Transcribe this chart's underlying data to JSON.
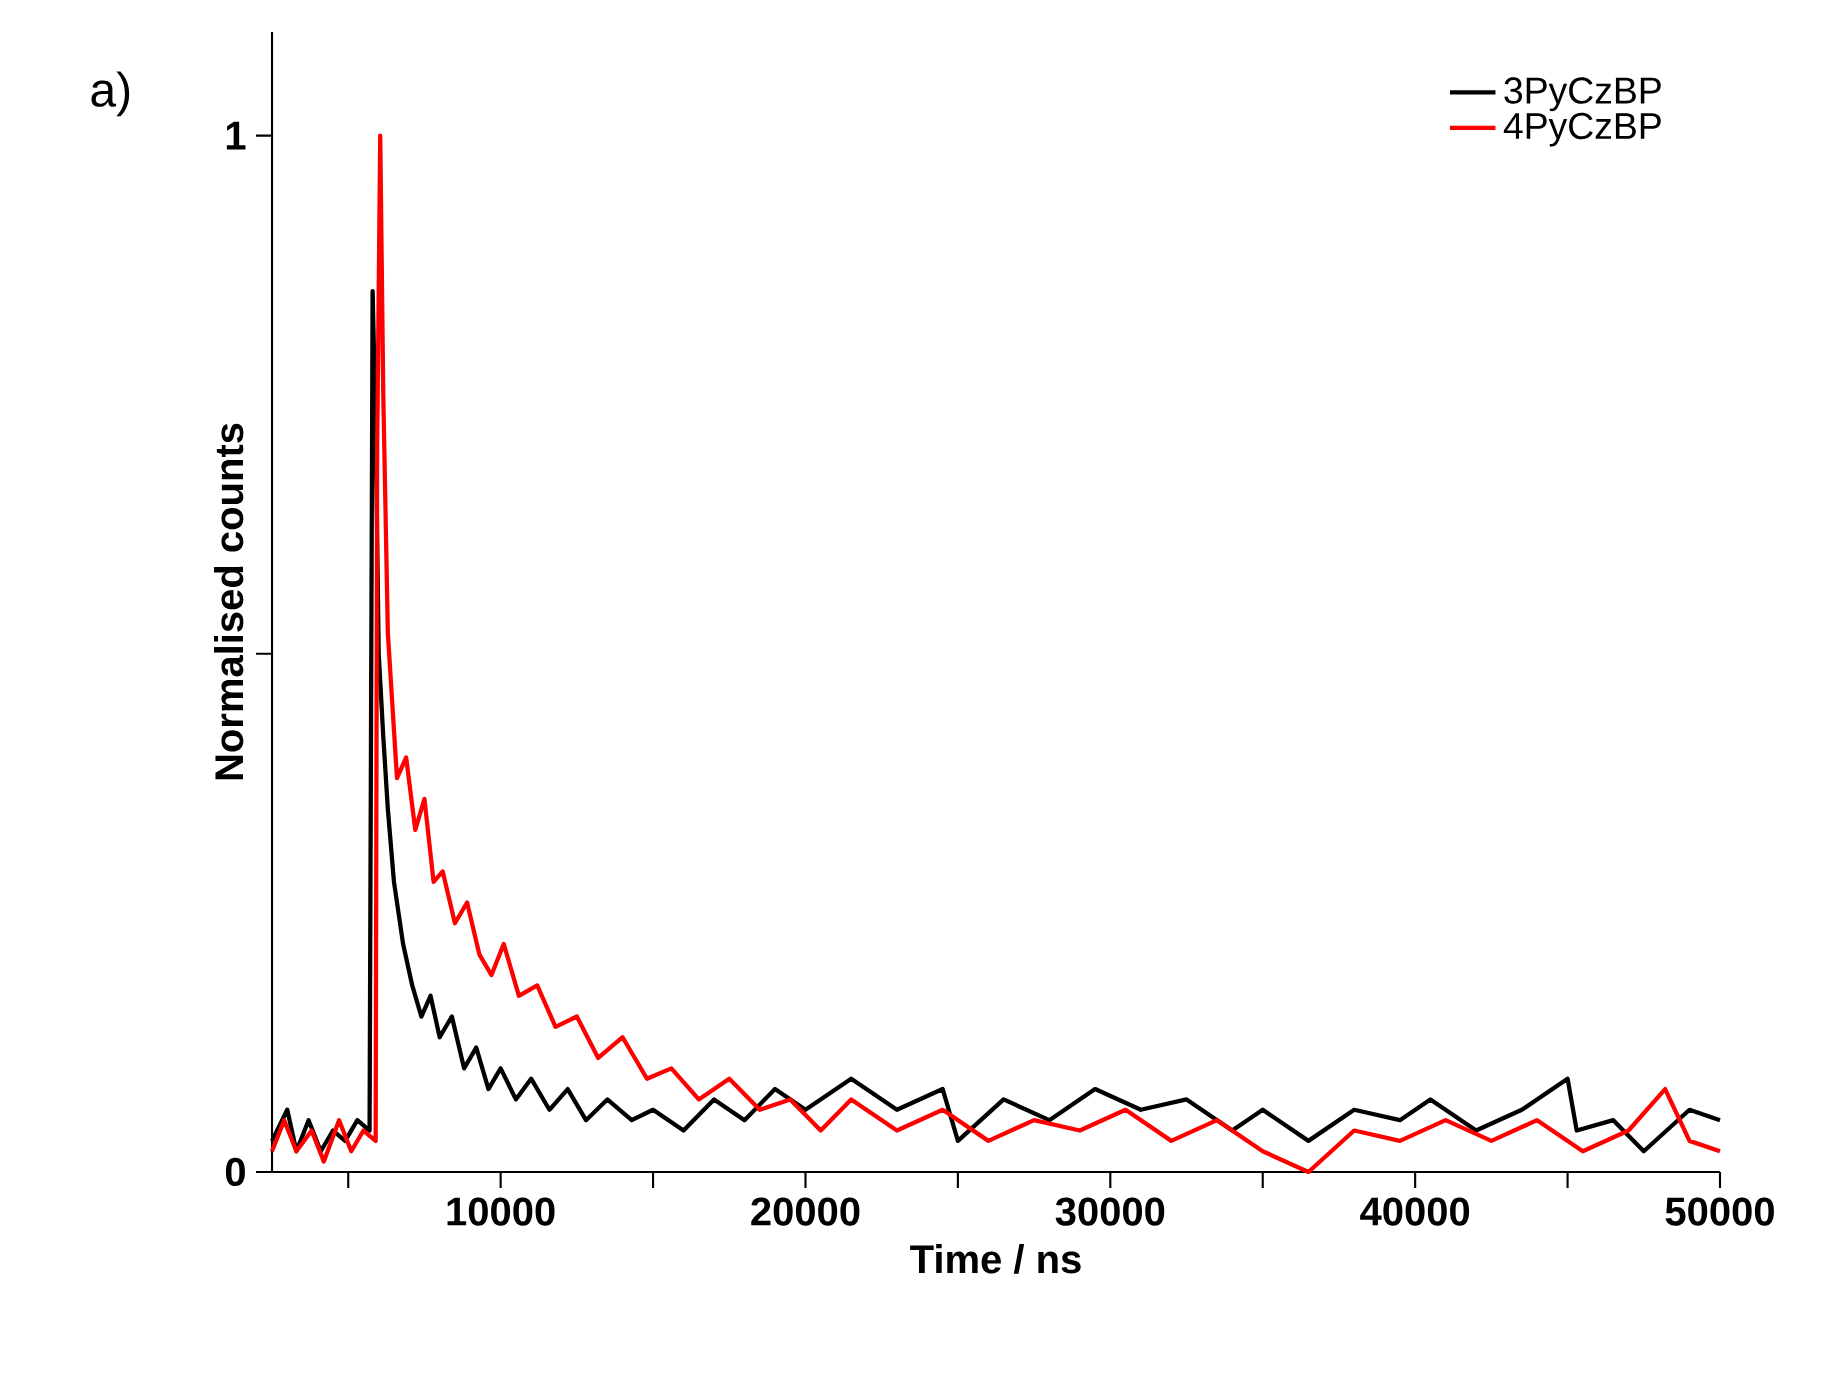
{
  "chart_data": {
    "type": "line",
    "xlabel": "Time / ns",
    "ylabel": "Normalised counts",
    "annotations": [
      "a)"
    ],
    "xlim": [
      2500,
      50000
    ],
    "ylim": [
      0,
      1.1
    ],
    "xticks": [
      {
        "value": 5000,
        "label": null
      },
      10000,
      {
        "value": 15000,
        "label": null
      },
      20000,
      {
        "value": 25000,
        "label": null
      },
      30000,
      {
        "value": 35000,
        "label": null
      },
      40000,
      {
        "value": 45000,
        "label": null
      },
      50000
    ],
    "yticks": [
      0,
      {
        "value": 0.5,
        "label": null
      },
      1
    ],
    "legend": "top right",
    "grid": false,
    "marker": "none",
    "line_style": "solid",
    "series": [
      {
        "name": "3PyCzBP",
        "color": "#000000",
        "x": [
          2500,
          3000,
          3300,
          3700,
          4100,
          4500,
          4900,
          5300,
          5700,
          5800,
          5900,
          6000,
          6150,
          6300,
          6500,
          6800,
          7100,
          7400,
          7700,
          8000,
          8400,
          8800,
          9200,
          9600,
          10000,
          10500,
          11000,
          11600,
          12200,
          12800,
          13500,
          14300,
          15000,
          16000,
          17000,
          18000,
          19000,
          20000,
          21500,
          23000,
          24500,
          25000,
          26500,
          28000,
          29500,
          31000,
          32500,
          34000,
          35000,
          36500,
          38000,
          39500,
          40500,
          42000,
          43500,
          45000,
          45300,
          46500,
          47500,
          49000,
          50000
        ],
        "values": [
          0.03,
          0.06,
          0.02,
          0.05,
          0.02,
          0.04,
          0.03,
          0.05,
          0.04,
          0.85,
          0.72,
          0.5,
          0.42,
          0.35,
          0.28,
          0.22,
          0.18,
          0.15,
          0.17,
          0.13,
          0.15,
          0.1,
          0.12,
          0.08,
          0.1,
          0.07,
          0.09,
          0.06,
          0.08,
          0.05,
          0.07,
          0.05,
          0.06,
          0.04,
          0.07,
          0.05,
          0.08,
          0.06,
          0.09,
          0.06,
          0.08,
          0.03,
          0.07,
          0.05,
          0.08,
          0.06,
          0.07,
          0.04,
          0.06,
          0.03,
          0.06,
          0.05,
          0.07,
          0.04,
          0.06,
          0.09,
          0.04,
          0.05,
          0.02,
          0.06,
          0.05
        ]
      },
      {
        "name": "4PyCzBP",
        "color": "#ff0000",
        "x": [
          2500,
          2900,
          3300,
          3800,
          4200,
          4700,
          5100,
          5500,
          5900,
          5950,
          6050,
          6150,
          6300,
          6450,
          6600,
          6900,
          7200,
          7500,
          7800,
          8100,
          8500,
          8900,
          9300,
          9700,
          10100,
          10600,
          11200,
          11800,
          12500,
          13200,
          14000,
          14800,
          15600,
          16500,
          17500,
          18500,
          19500,
          20500,
          21500,
          23000,
          24500,
          26000,
          27500,
          29000,
          30500,
          32000,
          33500,
          35000,
          36500,
          38000,
          39500,
          41000,
          42500,
          44000,
          45500,
          47000,
          48200,
          49000,
          50000
        ],
        "values": [
          0.02,
          0.05,
          0.02,
          0.04,
          0.01,
          0.05,
          0.02,
          0.04,
          0.03,
          0.7,
          1.0,
          0.75,
          0.52,
          0.45,
          0.38,
          0.4,
          0.33,
          0.36,
          0.28,
          0.29,
          0.24,
          0.26,
          0.21,
          0.19,
          0.22,
          0.17,
          0.18,
          0.14,
          0.15,
          0.11,
          0.13,
          0.09,
          0.1,
          0.07,
          0.09,
          0.06,
          0.07,
          0.04,
          0.07,
          0.04,
          0.06,
          0.03,
          0.05,
          0.04,
          0.06,
          0.03,
          0.05,
          0.02,
          0.0,
          0.04,
          0.03,
          0.05,
          0.03,
          0.05,
          0.02,
          0.04,
          0.08,
          0.03,
          0.02
        ]
      }
    ]
  }
}
